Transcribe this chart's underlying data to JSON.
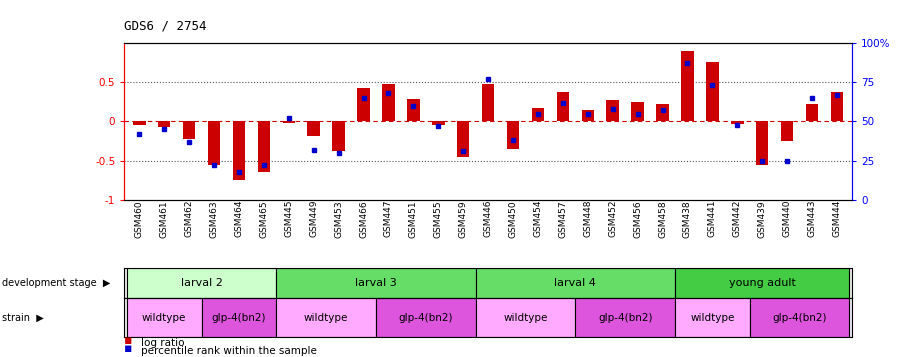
{
  "title": "GDS6 / 2754",
  "samples": [
    "GSM460",
    "GSM461",
    "GSM462",
    "GSM463",
    "GSM464",
    "GSM465",
    "GSM445",
    "GSM449",
    "GSM453",
    "GSM466",
    "GSM447",
    "GSM451",
    "GSM455",
    "GSM459",
    "GSM446",
    "GSM450",
    "GSM454",
    "GSM457",
    "GSM448",
    "GSM452",
    "GSM456",
    "GSM458",
    "GSM438",
    "GSM441",
    "GSM442",
    "GSM439",
    "GSM440",
    "GSM443",
    "GSM444"
  ],
  "log_ratio": [
    -0.05,
    -0.07,
    -0.22,
    -0.55,
    -0.75,
    -0.65,
    -0.02,
    -0.18,
    -0.38,
    0.42,
    0.47,
    0.28,
    -0.05,
    -0.45,
    0.47,
    -0.35,
    0.17,
    0.37,
    0.14,
    0.27,
    0.25,
    0.22,
    0.9,
    0.75,
    -0.03,
    -0.55,
    -0.25,
    0.22,
    0.37
  ],
  "percentile": [
    42,
    45,
    37,
    22,
    18,
    22,
    52,
    32,
    30,
    65,
    68,
    60,
    47,
    31,
    77,
    38,
    55,
    62,
    55,
    58,
    55,
    57,
    87,
    73,
    48,
    25,
    25,
    65,
    67
  ],
  "bar_color": "#cc0000",
  "dot_color": "#0000cc",
  "zero_line_color": "#cc0000",
  "dotted_line_color": "#555555",
  "ylim": [
    -1.0,
    1.0
  ],
  "y2lim": [
    0,
    100
  ],
  "yticks": [
    -1.0,
    -0.5,
    0.0,
    0.5
  ],
  "y2ticks": [
    0,
    25,
    50,
    75,
    100
  ],
  "y2tick_labels": [
    "0",
    "25",
    "50",
    "75",
    "100%"
  ],
  "dev_groups": [
    {
      "label": "larval 2",
      "start": 0,
      "end": 5,
      "color": "#ccffcc"
    },
    {
      "label": "larval 3",
      "start": 6,
      "end": 13,
      "color": "#66dd66"
    },
    {
      "label": "larval 4",
      "start": 14,
      "end": 21,
      "color": "#66dd66"
    },
    {
      "label": "young adult",
      "start": 22,
      "end": 28,
      "color": "#44cc44"
    }
  ],
  "strain_groups": [
    {
      "label": "wildtype",
      "start": 0,
      "end": 2,
      "color": "#ffaaff"
    },
    {
      "label": "glp-4(bn2)",
      "start": 3,
      "end": 5,
      "color": "#dd55dd"
    },
    {
      "label": "wildtype",
      "start": 6,
      "end": 9,
      "color": "#ffaaff"
    },
    {
      "label": "glp-4(bn2)",
      "start": 10,
      "end": 13,
      "color": "#dd55dd"
    },
    {
      "label": "wildtype",
      "start": 14,
      "end": 17,
      "color": "#ffaaff"
    },
    {
      "label": "glp-4(bn2)",
      "start": 18,
      "end": 21,
      "color": "#dd55dd"
    },
    {
      "label": "wildtype",
      "start": 22,
      "end": 24,
      "color": "#ffaaff"
    },
    {
      "label": "glp-4(bn2)",
      "start": 25,
      "end": 28,
      "color": "#dd55dd"
    }
  ],
  "xlabel_fontsize": 6.5,
  "title_fontsize": 9,
  "tick_label_fontsize": 7.5,
  "background_color": "#ffffff"
}
